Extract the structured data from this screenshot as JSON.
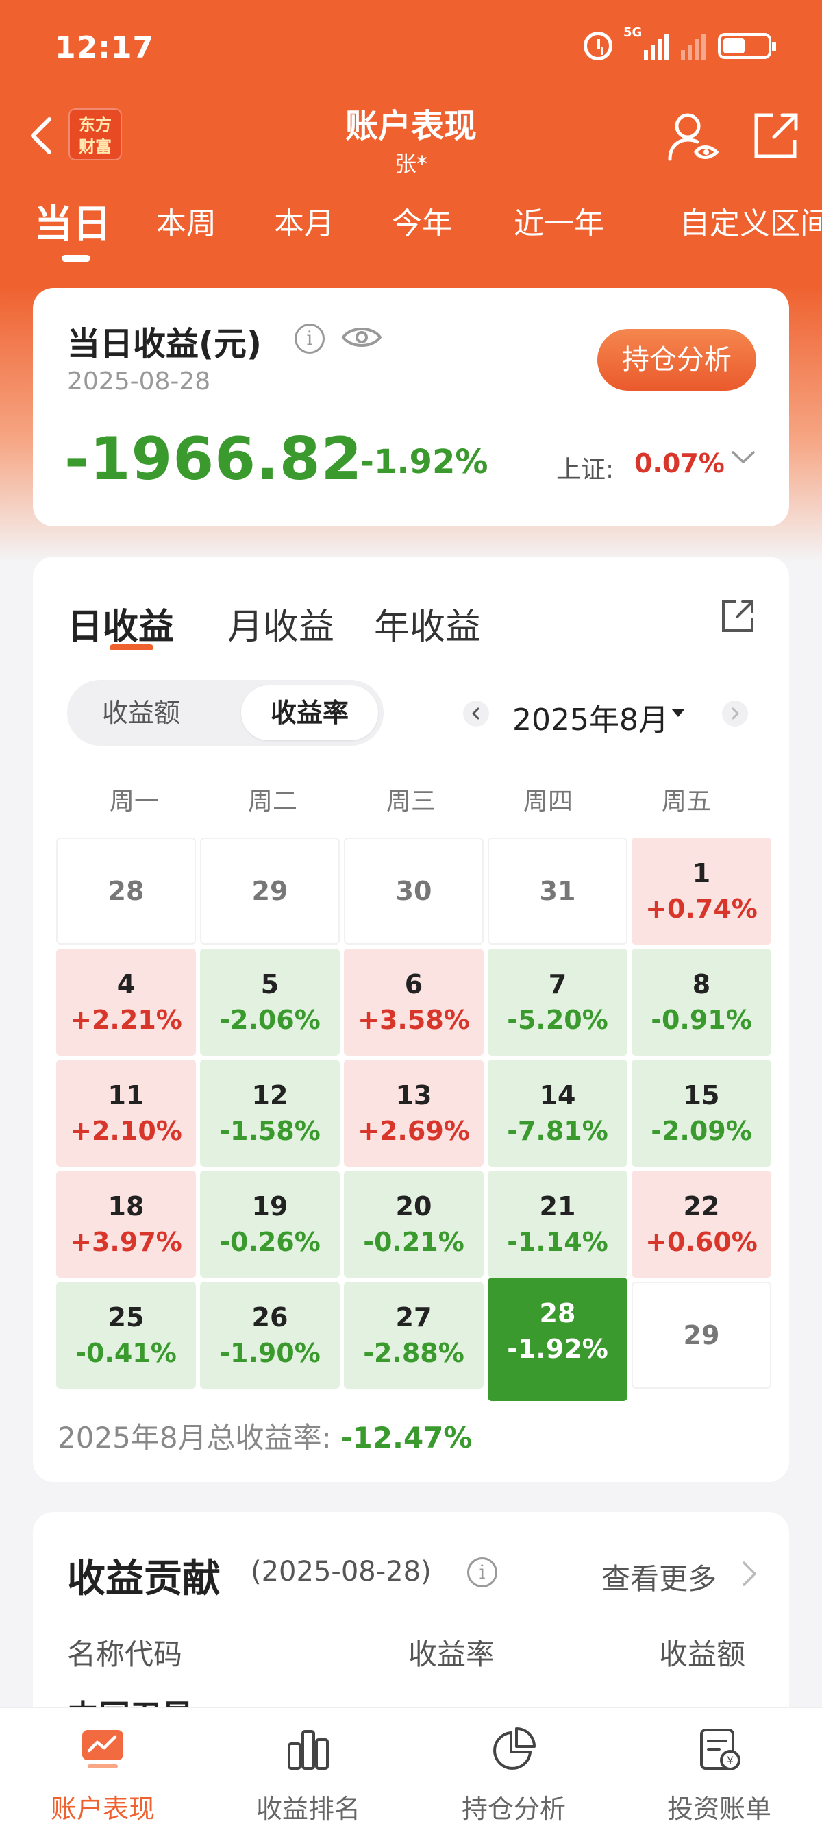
{
  "status_bar": {
    "time": "12:17",
    "network": "5G",
    "battery_level": 0.5
  },
  "header": {
    "title": "账户表现",
    "subtitle": "张*",
    "brand": [
      "东方",
      "财富"
    ]
  },
  "period_tabs": [
    "当日",
    "本周",
    "本月",
    "今年",
    "近一年",
    "自定义区间"
  ],
  "daily": {
    "title": "当日收益(元)",
    "date": "2025-08-28",
    "amount": "-1966.82",
    "rate": "-1.92%",
    "index_label": "上证:",
    "index_value": "0.07%",
    "position_button": "持仓分析"
  },
  "calendar": {
    "tabs": [
      "日收益",
      "月收益",
      "年收益"
    ],
    "segment": [
      "收益额",
      "收益率"
    ],
    "month": "2025年8月",
    "weekdays": [
      "周一",
      "周二",
      "周三",
      "周四",
      "周五"
    ],
    "days": [
      {
        "d": "28",
        "r": ""
      },
      {
        "d": "29",
        "r": ""
      },
      {
        "d": "30",
        "r": ""
      },
      {
        "d": "31",
        "r": ""
      },
      {
        "d": "1",
        "r": "+0.74%"
      },
      {
        "d": "4",
        "r": "+2.21%"
      },
      {
        "d": "5",
        "r": "-2.06%"
      },
      {
        "d": "6",
        "r": "+3.58%"
      },
      {
        "d": "7",
        "r": "-5.20%"
      },
      {
        "d": "8",
        "r": "-0.91%"
      },
      {
        "d": "11",
        "r": "+2.10%"
      },
      {
        "d": "12",
        "r": "-1.58%"
      },
      {
        "d": "13",
        "r": "+2.69%"
      },
      {
        "d": "14",
        "r": "-7.81%"
      },
      {
        "d": "15",
        "r": "-2.09%"
      },
      {
        "d": "18",
        "r": "+3.97%"
      },
      {
        "d": "19",
        "r": "-0.26%"
      },
      {
        "d": "20",
        "r": "-0.21%"
      },
      {
        "d": "21",
        "r": "-1.14%"
      },
      {
        "d": "22",
        "r": "+0.60%"
      },
      {
        "d": "25",
        "r": "-0.41%"
      },
      {
        "d": "26",
        "r": "-1.90%"
      },
      {
        "d": "27",
        "r": "-2.88%"
      },
      {
        "d": "28",
        "r": "-1.92%"
      },
      {
        "d": "29",
        "r": ""
      }
    ],
    "today": "28",
    "total_label": "2025年8月总收益率:",
    "total_value": "-12.47%",
    "colors": {
      "positive": "#d9362b",
      "negative": "#3a9a2e"
    }
  },
  "contribution": {
    "title": "收益贡献",
    "date": "(2025-08-28)",
    "see_more": "查看更多",
    "columns": [
      "名称代码",
      "收益率",
      "收益额"
    ],
    "first_row_partial": "中国卫星"
  },
  "bottom_nav": [
    "账户表现",
    "收益排名",
    "持仓分析",
    "投资账单"
  ],
  "accent": "#ef6230"
}
